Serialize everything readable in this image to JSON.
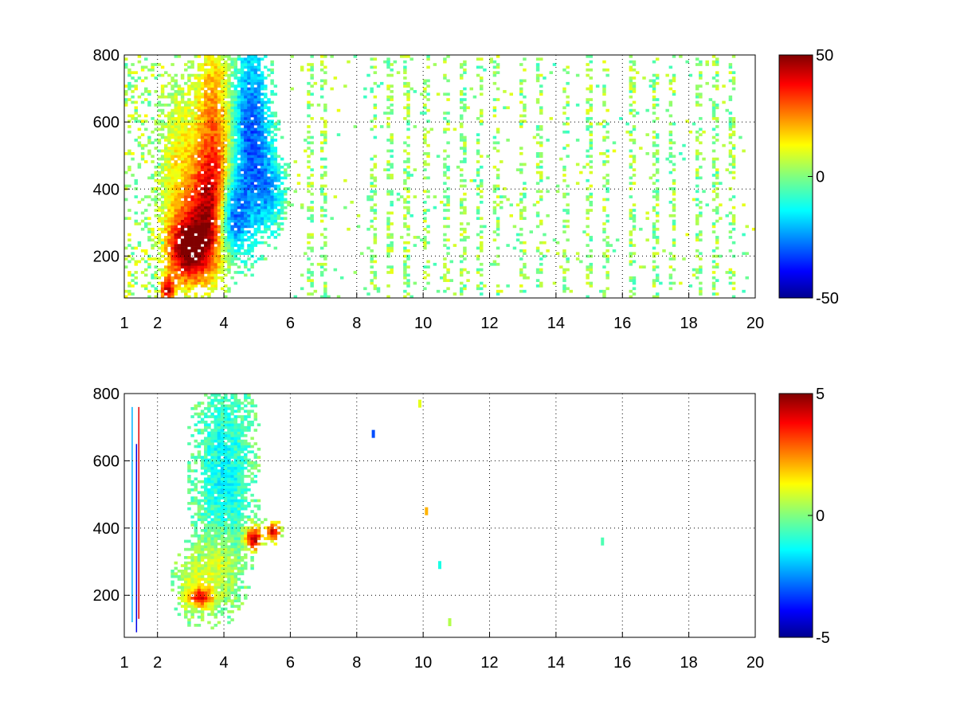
{
  "chart_data": [
    {
      "type": "heatmap",
      "title": "",
      "xlabel": "",
      "ylabel": "",
      "xlim": [
        1,
        20
      ],
      "ylim": [
        75,
        800
      ],
      "x_ticks": [
        "1",
        "2",
        "4",
        "6",
        "8",
        "10",
        "12",
        "14",
        "16",
        "18",
        "20"
      ],
      "x_tick_values": [
        1,
        2,
        4,
        6,
        8,
        10,
        12,
        14,
        16,
        18,
        20
      ],
      "y_ticks": [
        "200",
        "400",
        "600",
        "800"
      ],
      "y_tick_values": [
        200,
        400,
        600,
        800
      ],
      "grid": true,
      "colormap": "jet",
      "colorbar": {
        "min": -50,
        "max": 50,
        "labels": [
          "50",
          "0",
          "-50"
        ],
        "label_values": [
          50,
          0,
          -50
        ]
      },
      "blobs": [
        {
          "x": 2.9,
          "y": 220,
          "sx": 0.45,
          "sy": 70,
          "value": 45
        },
        {
          "x": 3.5,
          "y": 330,
          "sx": 0.45,
          "sy": 120,
          "value": 32
        },
        {
          "x": 3.7,
          "y": 560,
          "sx": 0.4,
          "sy": 220,
          "value": 25
        },
        {
          "x": 2.6,
          "y": 450,
          "sx": 0.35,
          "sy": 180,
          "value": 12
        },
        {
          "x": 4.2,
          "y": 320,
          "sx": 0.3,
          "sy": 80,
          "value": -32
        },
        {
          "x": 4.8,
          "y": 560,
          "sx": 0.4,
          "sy": 200,
          "value": -30
        },
        {
          "x": 5.4,
          "y": 400,
          "sx": 0.3,
          "sy": 80,
          "value": -15
        },
        {
          "x": 2.3,
          "y": 100,
          "sx": 0.15,
          "sy": 25,
          "value": 40
        }
      ],
      "noise_columns": [
        6.6,
        7.0,
        8.5,
        9.0,
        9.5,
        10.1,
        10.7,
        11.2,
        11.7,
        12.2,
        13.0,
        13.5,
        14.3,
        15.0,
        15.5,
        16.3,
        17.0,
        17.5,
        18.3,
        18.8,
        19.3
      ]
    },
    {
      "type": "heatmap",
      "title": "",
      "xlabel": "",
      "ylabel": "",
      "xlim": [
        1,
        20
      ],
      "ylim": [
        75,
        800
      ],
      "x_ticks": [
        "1",
        "2",
        "4",
        "6",
        "8",
        "10",
        "12",
        "14",
        "16",
        "18",
        "20"
      ],
      "x_tick_values": [
        1,
        2,
        4,
        6,
        8,
        10,
        12,
        14,
        16,
        18,
        20
      ],
      "y_ticks": [
        "200",
        "400",
        "600",
        "800"
      ],
      "y_tick_values": [
        200,
        400,
        600,
        800
      ],
      "grid": true,
      "colormap": "jet",
      "colorbar": {
        "min": -5,
        "max": 5,
        "labels": [
          "5",
          "0",
          "-5"
        ],
        "label_values": [
          5,
          0,
          -5
        ]
      },
      "blobs": [
        {
          "x": 4.0,
          "y": 560,
          "sx": 0.55,
          "sy": 200,
          "value": -1.2
        },
        {
          "x": 3.2,
          "y": 230,
          "sx": 0.4,
          "sy": 60,
          "value": 0.8
        },
        {
          "x": 3.9,
          "y": 300,
          "sx": 0.35,
          "sy": 70,
          "value": 1.2
        },
        {
          "x": 3.3,
          "y": 195,
          "sx": 0.25,
          "sy": 20,
          "value": 3.2
        },
        {
          "x": 4.9,
          "y": 370,
          "sx": 0.18,
          "sy": 25,
          "value": 4.6
        },
        {
          "x": 5.5,
          "y": 390,
          "sx": 0.15,
          "sy": 20,
          "value": 4.2
        }
      ],
      "isolated_points": [
        {
          "x": 8.5,
          "y": 680,
          "value": -3
        },
        {
          "x": 10.1,
          "y": 450,
          "value": 2
        },
        {
          "x": 10.5,
          "y": 290,
          "value": -1
        },
        {
          "x": 10.8,
          "y": 120,
          "value": 0.5
        },
        {
          "x": 15.4,
          "y": 360,
          "value": -0.5
        },
        {
          "x": 9.9,
          "y": 770,
          "value": 1
        }
      ]
    }
  ]
}
